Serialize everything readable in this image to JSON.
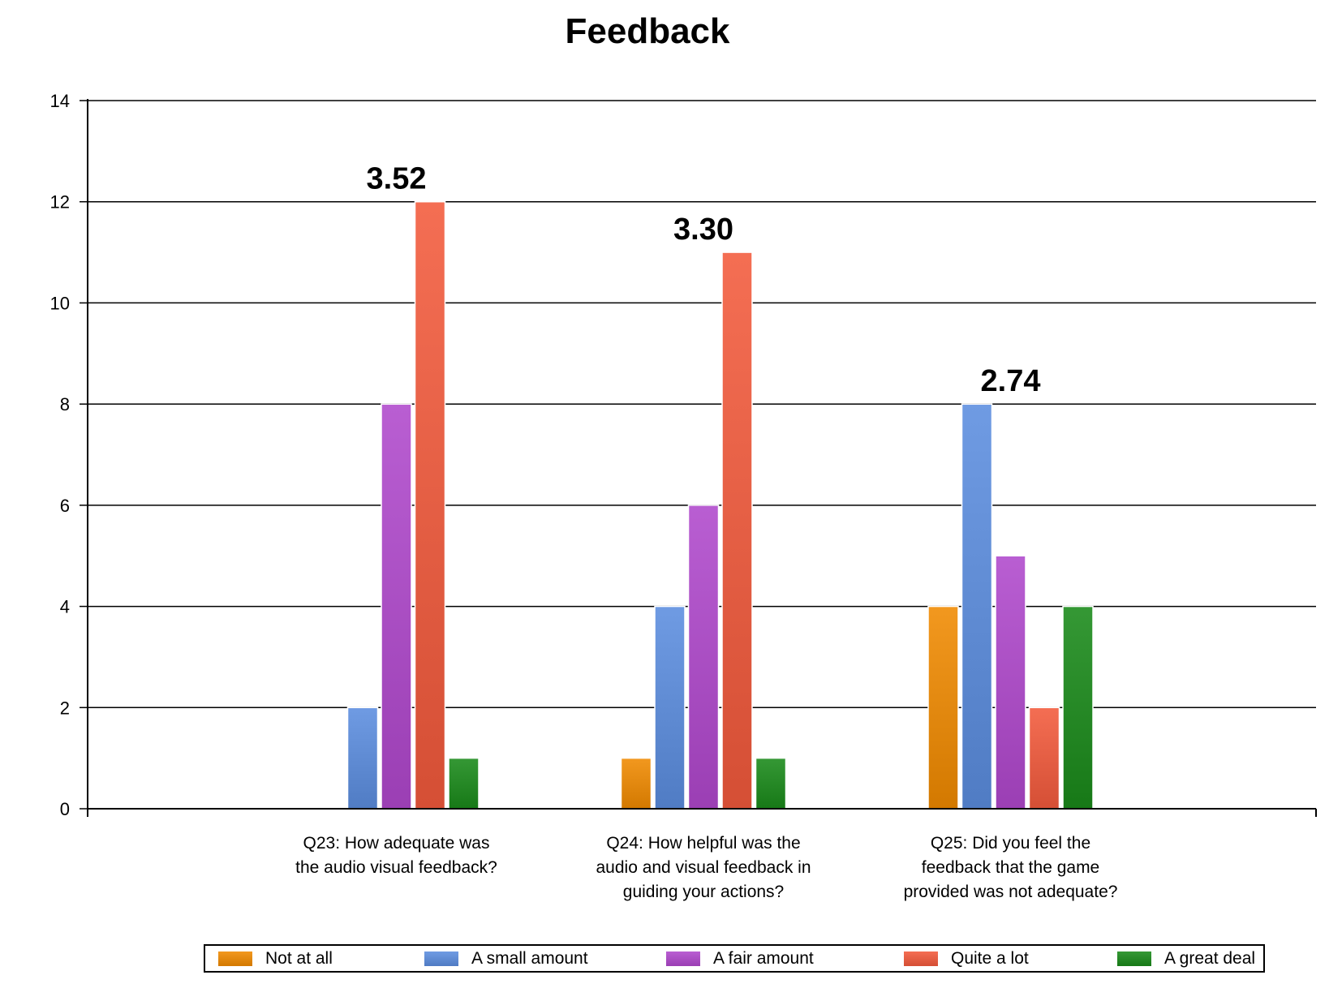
{
  "chart_data": {
    "type": "bar",
    "title": "Feedback",
    "xlabel": "",
    "ylabel": "",
    "ylim": [
      0,
      14
    ],
    "yticks": [
      0,
      2,
      4,
      6,
      8,
      10,
      12,
      14
    ],
    "grid": true,
    "legend_position": "bottom",
    "categories": [
      "Q23: How adequate was the audio visual feedback?",
      "Q24: How helpful was the audio and visual feedback in guiding your actions?",
      "Q25: Did you feel the feedback that the game provided was not adequate?"
    ],
    "category_label_lines": [
      [
        "Q23: How adequate was",
        "the audio visual feedback?"
      ],
      [
        "Q24: How helpful was the",
        "audio and visual feedback in",
        "guiding your actions?"
      ],
      [
        "Q25: Did you feel the",
        "feedback that the game",
        "provided was not adequate?"
      ]
    ],
    "annotations": [
      "3.52",
      "3.30",
      "2.74"
    ],
    "series": [
      {
        "name": "Not at all",
        "color": "#f08a00",
        "values": [
          0,
          1,
          4
        ]
      },
      {
        "name": "A small amount",
        "color": "#5b8ddf",
        "values": [
          2,
          4,
          8
        ]
      },
      {
        "name": "A fair amount",
        "color": "#b048cc",
        "values": [
          8,
          6,
          5
        ]
      },
      {
        "name": "Quite a lot",
        "color": "#f25a3c",
        "values": [
          12,
          11,
          2
        ]
      },
      {
        "name": "A great deal",
        "color": "#1a8a1a",
        "values": [
          1,
          1,
          4
        ]
      }
    ]
  }
}
